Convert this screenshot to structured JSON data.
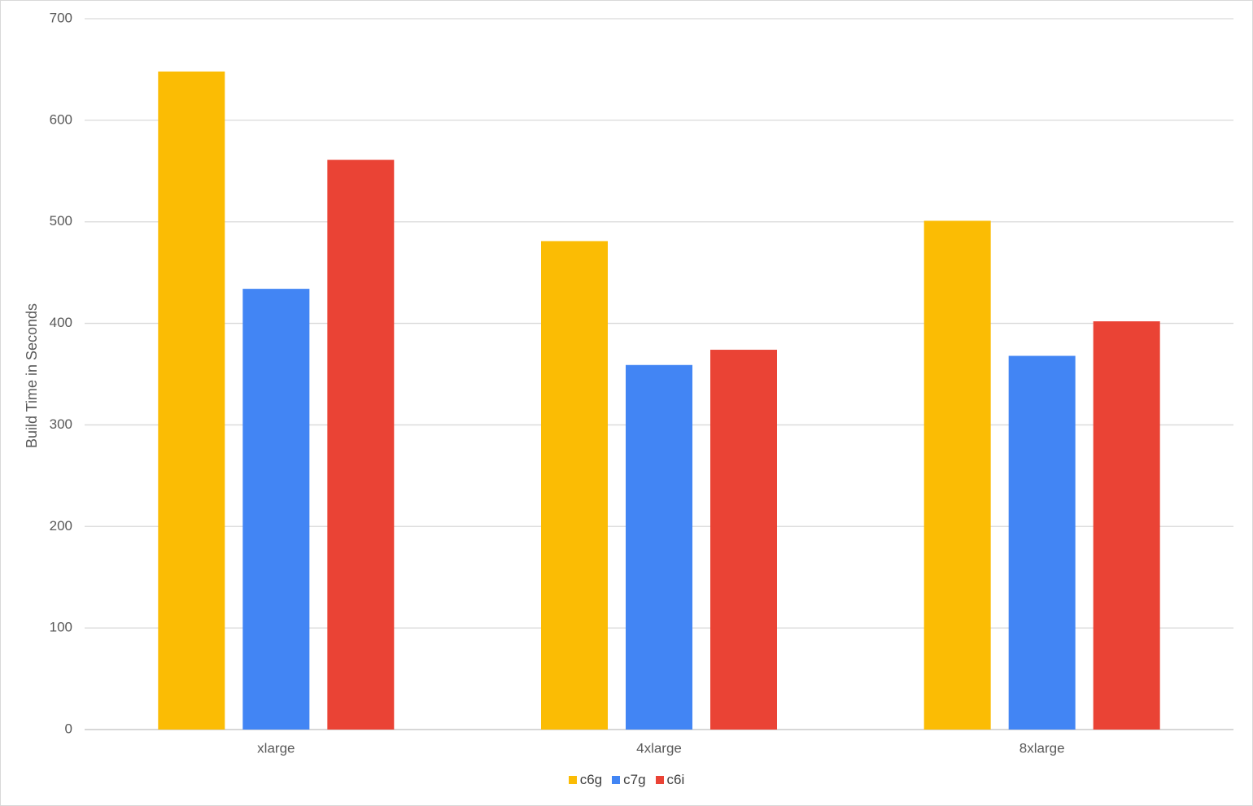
{
  "chart_data": {
    "type": "bar",
    "title": "",
    "xlabel": "",
    "ylabel": "Build Time in Seconds",
    "ylim": [
      0,
      700
    ],
    "yticks": [
      0,
      100,
      200,
      300,
      400,
      500,
      600,
      700
    ],
    "grid": true,
    "legend_position": "bottom",
    "categories": [
      "xlarge",
      "4xlarge",
      "8xlarge"
    ],
    "series": [
      {
        "name": "c6g",
        "color": "#FBBC04",
        "values": [
          648,
          481,
          501
        ]
      },
      {
        "name": "c7g",
        "color": "#4285F4",
        "values": [
          434,
          359,
          368
        ]
      },
      {
        "name": "c6i",
        "color": "#EA4335",
        "values": [
          561,
          374,
          402
        ]
      }
    ]
  }
}
